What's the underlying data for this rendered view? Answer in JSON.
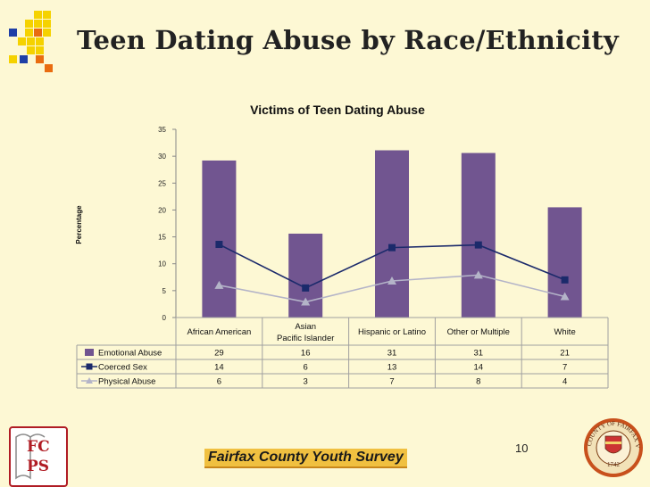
{
  "slide": {
    "title": "Teen Dating Abuse by Race/Ethnicity",
    "footer": "Fairfax County Youth Survey",
    "page_number": "10",
    "logo_text": [
      "FC",
      "PS"
    ],
    "seal_text": "COUNTY OF FAIRFAX VIRGINIA",
    "seal_year": "1742"
  },
  "colors": {
    "emotional": "#715590",
    "coerced": "#1b2a6b",
    "physical": "#b4b4c8",
    "accent_yellow": "#f5d200",
    "accent_orange": "#e96c10",
    "accent_blue": "#1f3fa6"
  },
  "chart_data": {
    "type": "bar",
    "title": "Victims of Teen Dating Abuse",
    "ylabel": "Percentage",
    "xlabel": "",
    "ylim": [
      0,
      35
    ],
    "yticks": [
      0,
      5,
      10,
      15,
      20,
      25,
      30,
      35
    ],
    "gridlines": false,
    "categories": [
      "African American",
      "Asian Pacific Islander",
      "Hispanic or Latino",
      "Other or Multiple",
      "White"
    ],
    "category_lines": [
      [
        "African American"
      ],
      [
        "Asian",
        "Pacific Islander"
      ],
      [
        "Hispanic or Latino"
      ],
      [
        "Other or Multiple"
      ],
      [
        "White"
      ]
    ],
    "series": [
      {
        "name": "Emotional Abuse",
        "kind": "bar",
        "marker": "bar",
        "values": [
          29,
          16,
          31,
          31,
          21
        ],
        "plotted": [
          29.2,
          15.6,
          31.1,
          30.6,
          20.5
        ]
      },
      {
        "name": "Coerced Sex",
        "kind": "line",
        "marker": "square",
        "values": [
          14,
          6,
          13,
          14,
          7
        ],
        "plotted": [
          13.6,
          5.5,
          13.0,
          13.5,
          7.0
        ]
      },
      {
        "name": "Physical Abuse",
        "kind": "line",
        "marker": "triangle",
        "values": [
          6,
          3,
          7,
          8,
          4
        ],
        "plotted": [
          6.0,
          2.9,
          6.8,
          7.9,
          3.9
        ]
      }
    ],
    "legend": "data-table-below"
  }
}
